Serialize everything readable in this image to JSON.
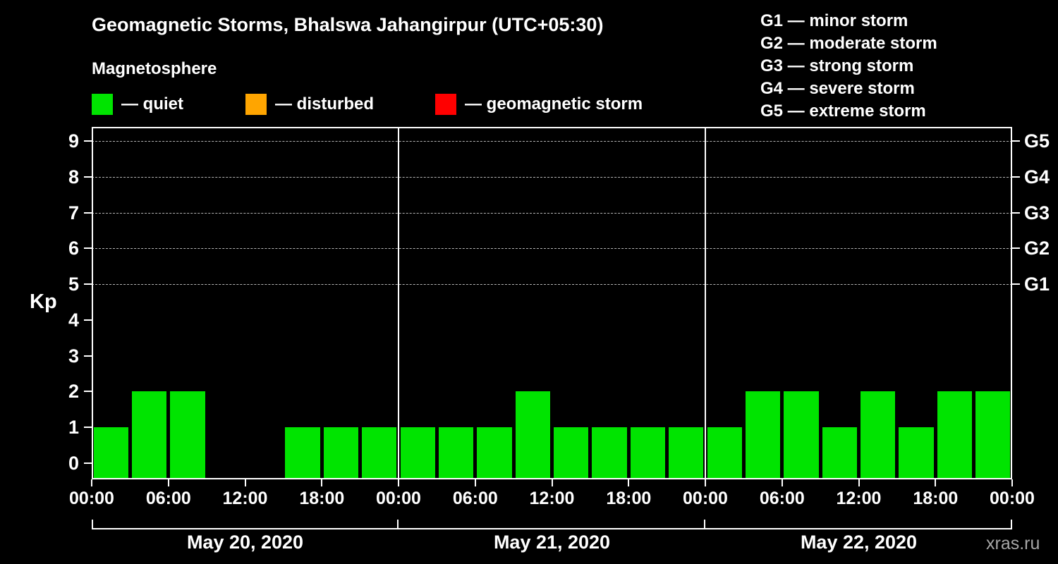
{
  "header": {
    "title": "Geomagnetic Storms, Bhalswa Jahangirpur (UTC+05:30)",
    "subtitle": "Magnetosphere"
  },
  "legend": {
    "items": [
      {
        "name": "quiet",
        "label": "— quiet",
        "color": "#00e400"
      },
      {
        "name": "disturbed",
        "label": "— disturbed",
        "color": "#ffa500"
      },
      {
        "name": "geomagnetic-storm",
        "label": "— geomagnetic storm",
        "color": "#ff0000"
      }
    ]
  },
  "g_scale_legend": {
    "lines": [
      "G1 — minor storm",
      "G2 — moderate storm",
      "G3 — strong storm",
      "G4 — severe storm",
      "G5 — extreme storm"
    ]
  },
  "watermark": "xras.ru",
  "chart_data": {
    "type": "bar",
    "title": "Geomagnetic Storms, Bhalswa Jahangirpur (UTC+05:30)",
    "ylabel": "Kp",
    "ylim": [
      0,
      9.5
    ],
    "yticks": [
      0,
      1,
      2,
      3,
      4,
      5,
      6,
      7,
      8,
      9
    ],
    "grid_levels_kp": [
      5,
      6,
      7,
      8,
      9
    ],
    "grid": "dashed horizontal lines at Kp 5–9 only",
    "legend_position": "top-left",
    "right_axis_labels": [
      {
        "kp": 5,
        "label": "G1"
      },
      {
        "kp": 6,
        "label": "G2"
      },
      {
        "kp": 7,
        "label": "G3"
      },
      {
        "kp": 8,
        "label": "G4"
      },
      {
        "kp": 9,
        "label": "G5"
      }
    ],
    "x_tick_labels": [
      "00:00",
      "06:00",
      "12:00",
      "18:00",
      "00:00",
      "06:00",
      "12:00",
      "18:00",
      "00:00",
      "06:00",
      "12:00",
      "18:00",
      "00:00"
    ],
    "interval_hours": 3,
    "bar_color": "#00e400",
    "timezone": "UTC+05:30",
    "days": [
      {
        "date": "May 20, 2020",
        "kp_values": [
          1,
          2,
          2,
          0,
          0,
          1,
          1,
          1
        ]
      },
      {
        "date": "May 21, 2020",
        "kp_values": [
          1,
          1,
          1,
          2,
          1,
          1,
          1,
          1
        ]
      },
      {
        "date": "May 22, 2020",
        "kp_values": [
          1,
          2,
          2,
          1,
          2,
          1,
          2,
          2
        ]
      }
    ]
  }
}
